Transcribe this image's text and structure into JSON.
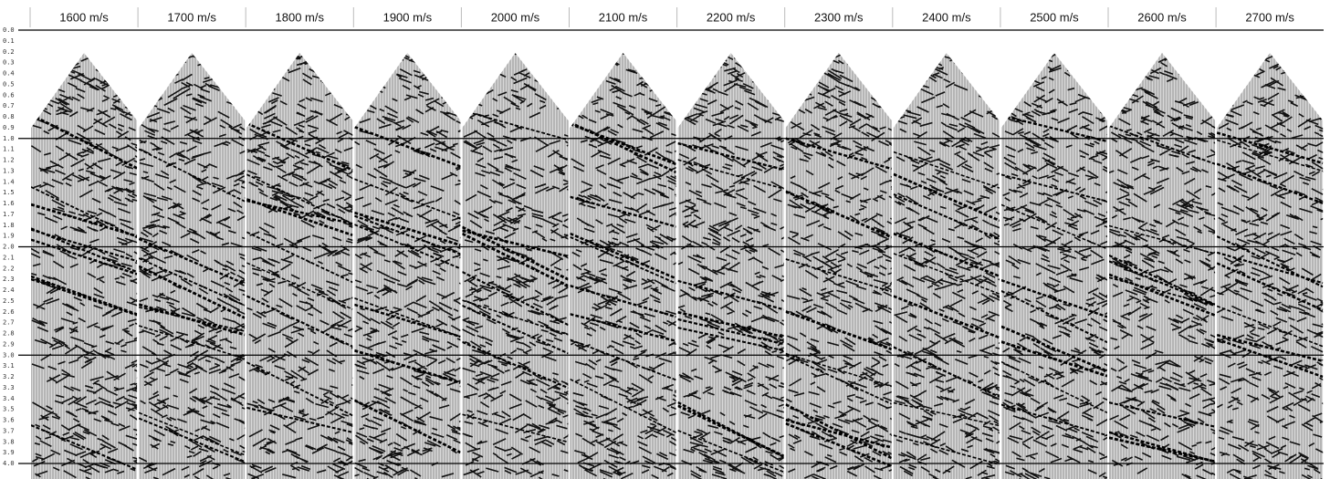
{
  "panels": [
    "1600 m/s",
    "1700 m/s",
    "1800 m/s",
    "1900 m/s",
    "2000 m/s",
    "2100 m/s",
    "2200 m/s",
    "2300 m/s",
    "2400 m/s",
    "2500 m/s",
    "2600 m/s",
    "2700 m/s"
  ],
  "time_axis": {
    "labels": [
      "0.0",
      "0.1",
      "0.2",
      "0.3",
      "0.4",
      "0.5",
      "0.6",
      "0.7",
      "0.8",
      "0.9",
      "1.0",
      "1.1",
      "1.2",
      "1.3",
      "1.4",
      "1.5",
      "1.6",
      "1.7",
      "1.8",
      "1.9",
      "2.0",
      "2.1",
      "2.2",
      "2.3",
      "2.4",
      "2.5",
      "2.6",
      "2.7",
      "2.8",
      "2.9",
      "3.0",
      "3.1",
      "3.2",
      "3.3",
      "3.4",
      "3.5",
      "3.6",
      "3.7",
      "3.8",
      "3.9",
      "4.0"
    ]
  }
}
